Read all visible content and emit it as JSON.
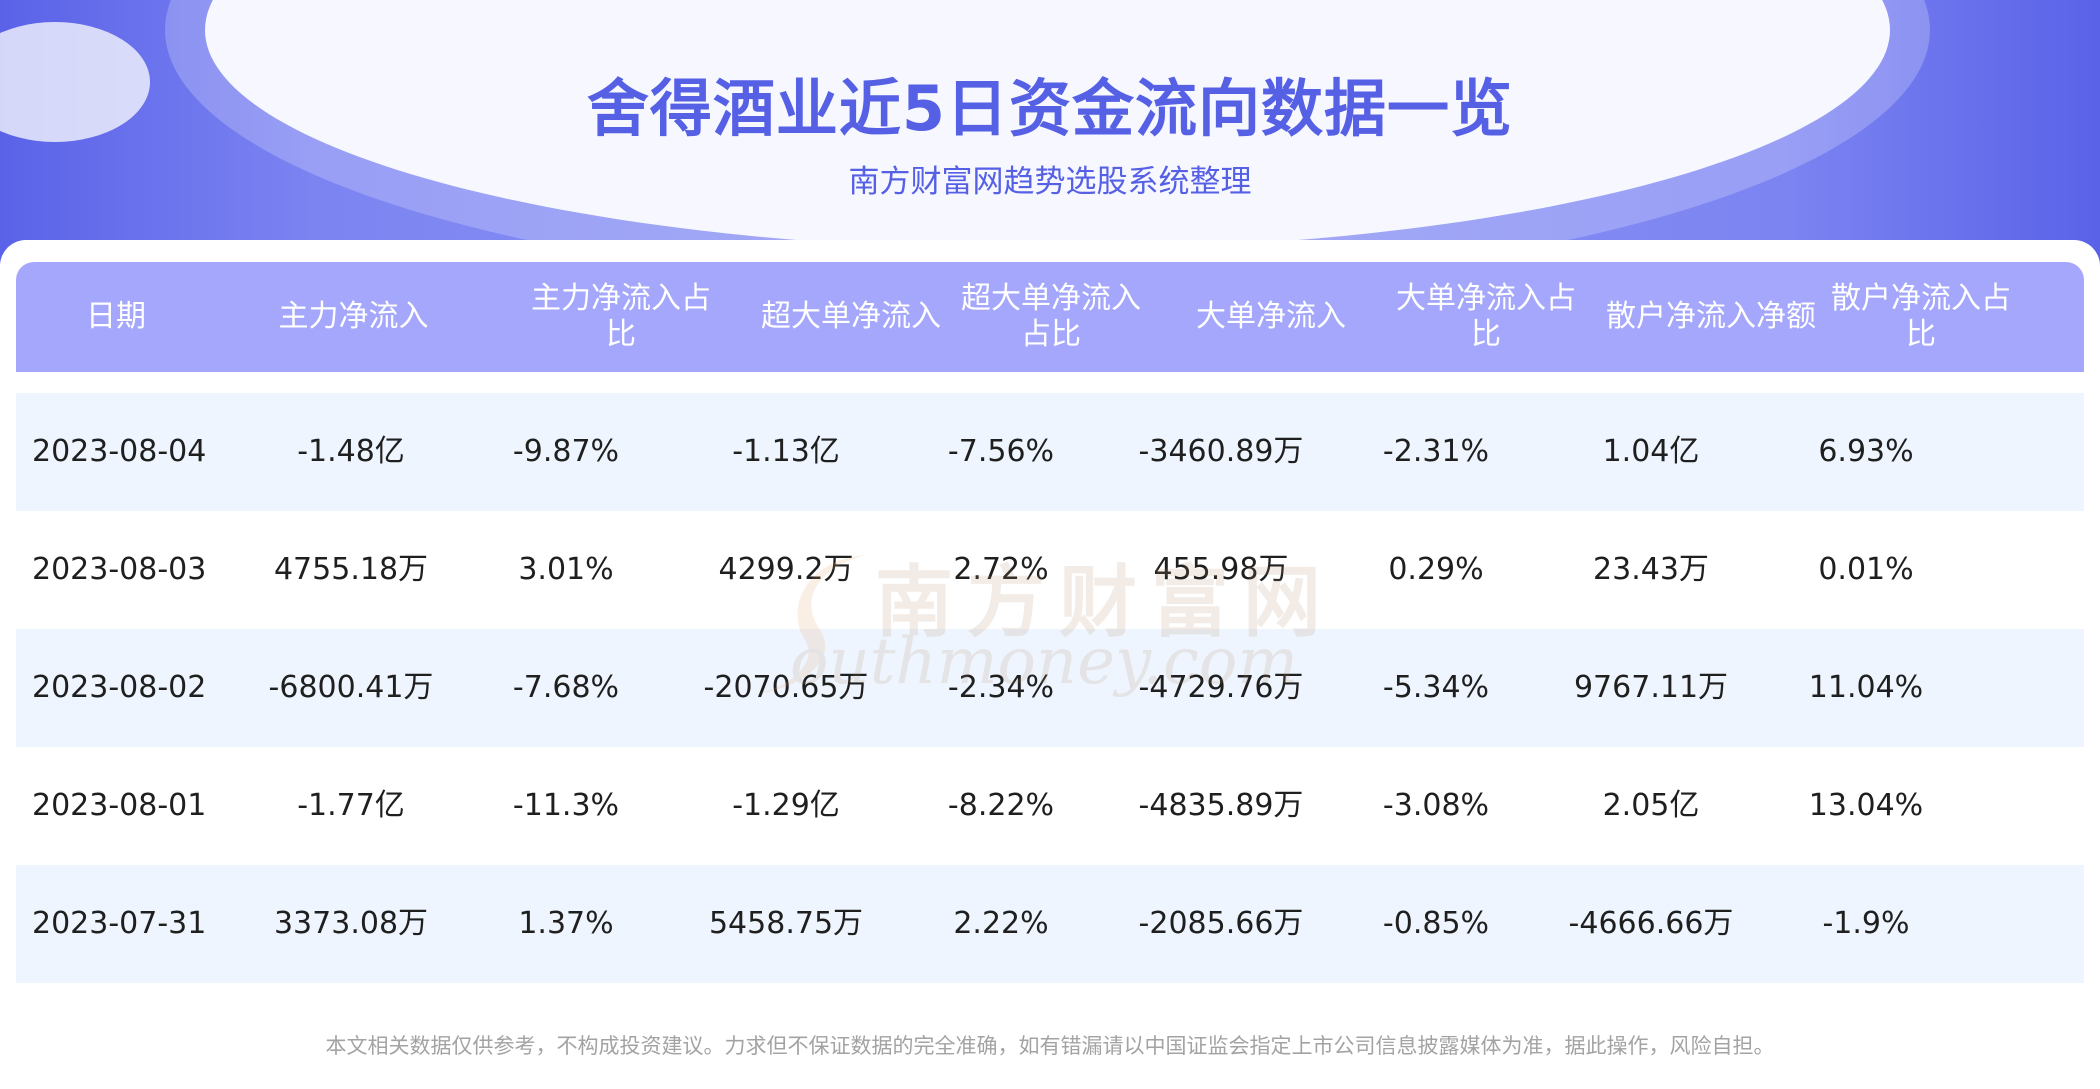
{
  "header": {
    "title": "舍得酒业近5日资金流向数据一览",
    "subtitle": "南方财富网趋势选股系统整理"
  },
  "table": {
    "columns": [
      "日期",
      "主力净流入",
      "主力净流入占比",
      "超大单净流入",
      "超大单净流入占比",
      "大单净流入",
      "大单净流入占比",
      "散户净流入净额",
      "散户净流入占比"
    ],
    "rows": [
      [
        "2023-08-04",
        "-1.48亿",
        "-9.87%",
        "-1.13亿",
        "-7.56%",
        "-3460.89万",
        "-2.31%",
        "1.04亿",
        "6.93%"
      ],
      [
        "2023-08-03",
        "4755.18万",
        "3.01%",
        "4299.2万",
        "2.72%",
        "455.98万",
        "0.29%",
        "23.43万",
        "0.01%"
      ],
      [
        "2023-08-02",
        "-6800.41万",
        "-7.68%",
        "-2070.65万",
        "-2.34%",
        "-4729.76万",
        "-5.34%",
        "9767.11万",
        "11.04%"
      ],
      [
        "2023-08-01",
        "-1.77亿",
        "-11.3%",
        "-1.29亿",
        "-8.22%",
        "-4835.89万",
        "-3.08%",
        "2.05亿",
        "13.04%"
      ],
      [
        "2023-07-31",
        "3373.08万",
        "1.37%",
        "5458.75万",
        "2.22%",
        "-2085.66万",
        "-0.85%",
        "-4666.66万",
        "-1.9%"
      ]
    ]
  },
  "watermark": {
    "cn": "南方财富网",
    "en": "outhmoney.com"
  },
  "footer": {
    "disclaimer": "本文相关数据仅供参考，不构成投资建议。力求但不保证数据的完全准确，如有错漏请以中国证监会指定上市公司信息披露媒体为准，据此操作，风险自担。"
  },
  "colors": {
    "header_gradient": "#7c84f2",
    "title": "#5560e4",
    "table_header": "#a4a7fb",
    "row_alt": "#eff5fe",
    "footer_text": "#a3a3a3"
  }
}
